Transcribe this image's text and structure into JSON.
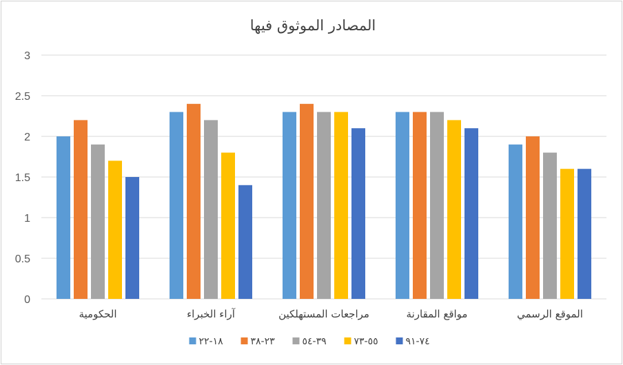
{
  "chart_data": {
    "type": "bar",
    "title": "المصادر الموثوق فيها",
    "categories": [
      "الحكومية",
      "آراء الخبراء",
      "مراجعات المستهلكين",
      "مواقع المقارنة",
      "الموقع الرسمي"
    ],
    "series": [
      {
        "name": "١٨-٢٢",
        "color": "#5B9BD5",
        "values": [
          2.0,
          2.3,
          2.3,
          2.3,
          1.9
        ]
      },
      {
        "name": "٢٣-٣٨",
        "color": "#ED7D31",
        "values": [
          2.2,
          2.4,
          2.4,
          2.3,
          2.0
        ]
      },
      {
        "name": "٣٩-٥٤",
        "color": "#A5A5A5",
        "values": [
          1.9,
          2.2,
          2.3,
          2.3,
          1.8
        ]
      },
      {
        "name": "٥٥-٧٣",
        "color": "#FFC000",
        "values": [
          1.7,
          1.8,
          2.3,
          2.2,
          1.6
        ]
      },
      {
        "name": "٧٤-٩١",
        "color": "#4472C4",
        "values": [
          1.5,
          1.4,
          2.1,
          2.1,
          1.6
        ]
      }
    ],
    "ylim": [
      0,
      3
    ],
    "yticks": [
      "0",
      "0.5",
      "1",
      "1.5",
      "2",
      "2.5",
      "3"
    ],
    "ytick_values": [
      0,
      0.5,
      1,
      1.5,
      2,
      2.5,
      3
    ],
    "grid": true,
    "legend": "bottom"
  }
}
